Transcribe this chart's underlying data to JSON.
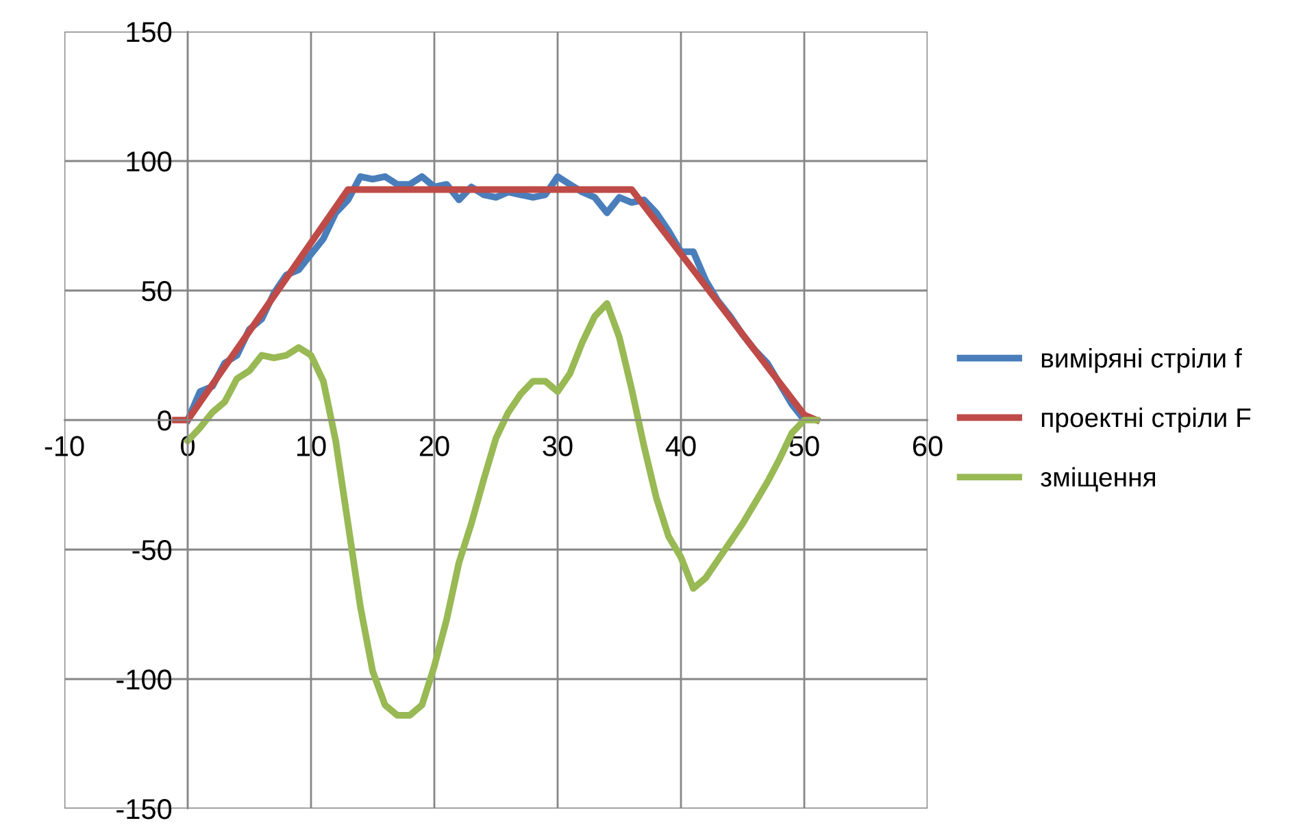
{
  "chart_data": {
    "type": "line",
    "xlim": [
      -10,
      60
    ],
    "xticks": [
      -10,
      0,
      10,
      20,
      30,
      40,
      50,
      60
    ],
    "ylim": [
      -150,
      150
    ],
    "yticks": [
      -150,
      -100,
      -50,
      0,
      50,
      100,
      150
    ],
    "grid": true,
    "legend": "right",
    "marker": "none",
    "line_style": "solid",
    "series": [
      {
        "name": "виміряні стріли f",
        "color": "#4a7ebb",
        "x": [
          0,
          1,
          2,
          3,
          4,
          5,
          6,
          7,
          8,
          9,
          10,
          11,
          12,
          13,
          14,
          15,
          16,
          17,
          18,
          19,
          20,
          21,
          22,
          23,
          24,
          25,
          26,
          27,
          28,
          29,
          30,
          31,
          32,
          33,
          34,
          35,
          36,
          37,
          38,
          39,
          40,
          41,
          42,
          43,
          44,
          45,
          46,
          47,
          48,
          49,
          50
        ],
        "values": [
          0,
          11,
          13,
          22,
          25,
          35,
          39,
          49,
          56,
          58,
          64,
          70,
          80,
          85,
          94,
          93,
          94,
          91,
          91,
          94,
          90,
          91,
          85,
          90,
          87,
          86,
          88,
          87,
          86,
          87,
          94,
          91,
          88,
          86,
          80,
          86,
          84,
          85,
          80,
          73,
          65,
          65,
          54,
          46,
          40,
          33,
          27,
          22,
          14,
          6,
          0
        ]
      },
      {
        "name": "проектні стріли F",
        "color": "#be4b48",
        "x": [
          -1,
          0,
          13,
          36,
          50,
          51
        ],
        "values": [
          0,
          0,
          89,
          89,
          2,
          0
        ]
      },
      {
        "name": "зміщення",
        "color": "#98b954",
        "x": [
          0,
          1,
          2,
          3,
          4,
          5,
          6,
          7,
          8,
          9,
          10,
          11,
          12,
          13,
          14,
          15,
          16,
          17,
          18,
          19,
          20,
          21,
          22,
          23,
          24,
          25,
          26,
          27,
          28,
          29,
          30,
          31,
          32,
          33,
          34,
          35,
          36,
          37,
          38,
          39,
          40,
          41,
          42,
          43,
          44,
          45,
          46,
          47,
          48,
          49,
          50,
          51
        ],
        "values": [
          -8,
          -3,
          3,
          7,
          16,
          19,
          25,
          24,
          25,
          28,
          25,
          15,
          -8,
          -40,
          -72,
          -97,
          -110,
          -114,
          -114,
          -110,
          -95,
          -77,
          -55,
          -40,
          -23,
          -7,
          3,
          10,
          15,
          15,
          11,
          18,
          30,
          40,
          45,
          32,
          12,
          -10,
          -30,
          -45,
          -53,
          -65,
          -61,
          -54,
          -47,
          -40,
          -32,
          -24,
          -15,
          -5,
          0,
          0
        ]
      }
    ]
  }
}
